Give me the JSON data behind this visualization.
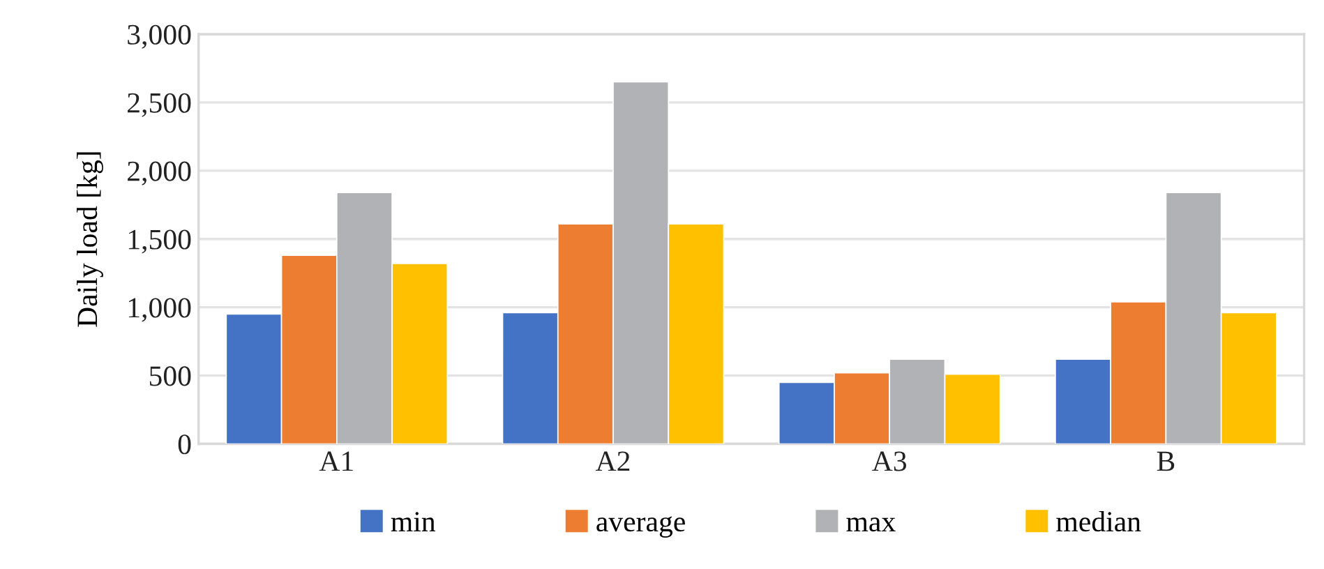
{
  "chart_data": {
    "type": "bar",
    "ylabel": "Daily load [kg]",
    "categories": [
      "A1",
      "A2",
      "A3",
      "B"
    ],
    "series": [
      {
        "name": "min",
        "color": "#4472c4",
        "values": [
          950,
          960,
          450,
          620
        ]
      },
      {
        "name": "average",
        "color": "#ed7d31",
        "values": [
          1380,
          1610,
          520,
          1040
        ]
      },
      {
        "name": "max",
        "color": "#b1b2b6",
        "values": [
          1840,
          2650,
          620,
          1840
        ]
      },
      {
        "name": "median",
        "color": "#ffc000",
        "values": [
          1320,
          1610,
          510,
          960
        ]
      }
    ],
    "ylim": [
      0,
      3000
    ],
    "yticks": [
      {
        "value": 0,
        "label": "0"
      },
      {
        "value": 500,
        "label": "500"
      },
      {
        "value": 1000,
        "label": "1,000"
      },
      {
        "value": 1500,
        "label": "1,500"
      },
      {
        "value": 2000,
        "label": "2,000"
      },
      {
        "value": 2500,
        "label": "2,500"
      },
      {
        "value": 3000,
        "label": "3,000"
      }
    ],
    "grid": "y",
    "legend": "bottom"
  }
}
